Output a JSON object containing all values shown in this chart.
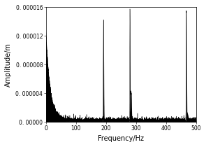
{
  "xlabel": "Frequency/Hz",
  "ylabel": "Amplitude/m",
  "xlim": [
    0,
    500
  ],
  "ylim": [
    0,
    1.6e-05
  ],
  "yticks": [
    0.0,
    4e-06,
    8e-06,
    1.2e-05,
    1.6e-05
  ],
  "ytick_labels": [
    "0. 00000",
    "0. 000004",
    "0. 000008",
    "0. 000012",
    "0. 000016"
  ],
  "xticks": [
    0,
    100,
    200,
    300,
    400,
    500
  ],
  "peaks": [
    {
      "freq": 192,
      "amp": 1.38e-05,
      "sigma": 0.8
    },
    {
      "freq": 280,
      "amp": 1.555e-05,
      "sigma": 0.7
    },
    {
      "freq": 284,
      "amp": 4e-06,
      "sigma": 1.2
    },
    {
      "freq": 468,
      "amp": 1.53e-05,
      "sigma": 0.8
    },
    {
      "freq": 472,
      "amp": 8e-07,
      "sigma": 1.0
    }
  ],
  "dc_amp": 1.25e-05,
  "dc_decay_rate": 14.0,
  "noise_floor": 1.8e-07,
  "noise_exp_scale": 1.2e-07,
  "line_color": "#000000",
  "bg_color": "#ffffff",
  "xlabel_fontsize": 7,
  "ylabel_fontsize": 7,
  "tick_fontsize": 5.5
}
